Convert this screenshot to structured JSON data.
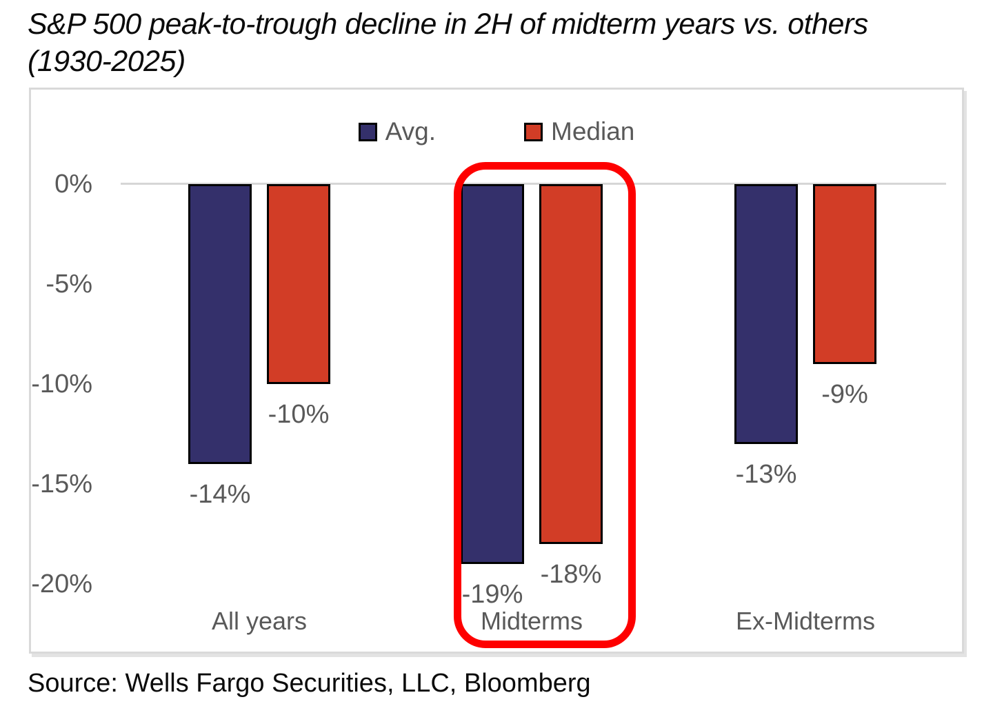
{
  "header": {
    "title_line1": "S&P 500 peak-to-trough decline in 2H of midterm years vs. others",
    "title_line2": "(1930-2025)"
  },
  "footer": {
    "source": "Source: Wells Fargo Securities, LLC, Bloomberg"
  },
  "colors": {
    "avg_bar": "#34306b",
    "median_bar": "#d23d26",
    "bar_outline": "#000000",
    "highlight_box": "#fe0000",
    "axis_text": "#595959",
    "gridline": "#d6d6d6",
    "card_border": "#d9d9d9",
    "title_text": "#0b0b0b"
  },
  "chart_data": {
    "type": "bar",
    "title": "S&P 500 peak-to-trough decline in 2H of midterm years vs. others (1930-2025)",
    "categories": [
      "All years",
      "Midterms",
      "Ex-Midterms"
    ],
    "series": [
      {
        "name": "Avg.",
        "color": "#34306b",
        "values": [
          -14,
          -19,
          -13
        ],
        "labels": [
          "-14%",
          "-19%",
          "-13%"
        ]
      },
      {
        "name": "Median",
        "color": "#d23d26",
        "values": [
          -10,
          -18,
          -9
        ],
        "labels": [
          "-10%",
          "-18%",
          "-9%"
        ]
      }
    ],
    "y_ticks": [
      "0%",
      "-5%",
      "-10%",
      "-15%",
      "-20%"
    ],
    "ylim": [
      -21.5,
      0
    ],
    "grid": "zero-baseline-only",
    "legend_position": "top-center",
    "annotations": [
      {
        "type": "highlight-box",
        "target_category": "Midterms",
        "style": "red rounded rectangle around both Midterms bars and label"
      }
    ]
  }
}
